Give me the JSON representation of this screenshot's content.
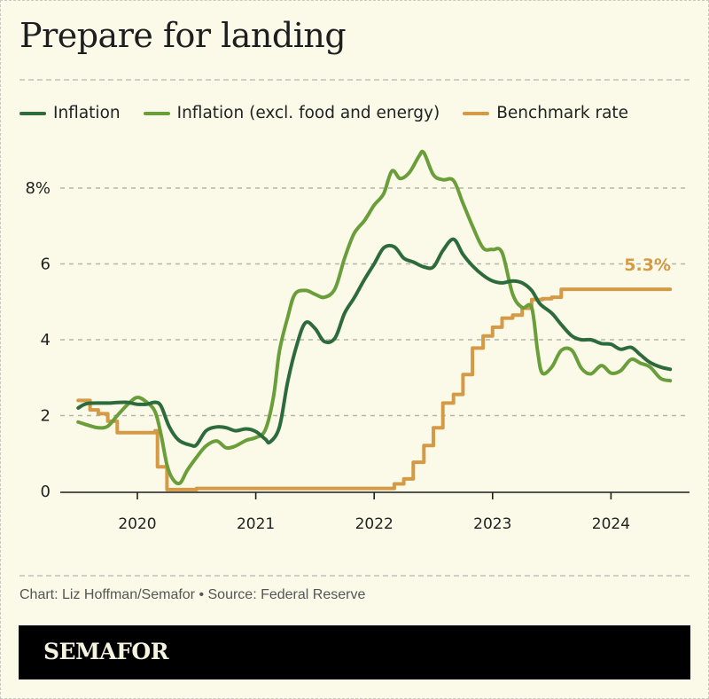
{
  "title": "Prepare for landing",
  "legend": [
    {
      "label": "Inflation",
      "color": "#2e6b3c"
    },
    {
      "label": "Inflation (excl. food and energy)",
      "color": "#6a9e3a"
    },
    {
      "label": "Benchmark rate",
      "color": "#d49a45"
    }
  ],
  "footer": {
    "source": "Chart: Liz Hoffman/Semafor • Source: Federal Reserve",
    "brand": "SEMAFOR"
  },
  "chart_data": {
    "type": "line",
    "title": "Prepare for landing",
    "xlabel": "",
    "ylabel": "",
    "xlim": [
      2019.5,
      2024.55
    ],
    "ylim": [
      0,
      8.4
    ],
    "grid": true,
    "legend_position": "top",
    "yticks": [
      {
        "value": 0,
        "label": "0"
      },
      {
        "value": 2,
        "label": "2"
      },
      {
        "value": 4,
        "label": "4"
      },
      {
        "value": 6,
        "label": "6"
      },
      {
        "value": 8,
        "label": "8%"
      }
    ],
    "xticks": [
      {
        "value": 2020,
        "label": "2020"
      },
      {
        "value": 2021,
        "label": "2021"
      },
      {
        "value": 2022,
        "label": "2022"
      },
      {
        "value": 2023,
        "label": "2023"
      },
      {
        "value": 2024,
        "label": "2024"
      }
    ],
    "annotations": [
      {
        "text": "5.3%",
        "x": 2024.5,
        "y": 5.3,
        "series": "Benchmark rate"
      }
    ],
    "series": [
      {
        "name": "Inflation",
        "color": "#2e6b3c",
        "step": false,
        "points": [
          [
            2019.5,
            2.2
          ],
          [
            2019.58,
            2.32
          ],
          [
            2019.75,
            2.33
          ],
          [
            2019.9,
            2.35
          ],
          [
            2020.0,
            2.3
          ],
          [
            2020.08,
            2.3
          ],
          [
            2020.15,
            2.35
          ],
          [
            2020.2,
            2.25
          ],
          [
            2020.27,
            1.7
          ],
          [
            2020.35,
            1.35
          ],
          [
            2020.45,
            1.22
          ],
          [
            2020.5,
            1.23
          ],
          [
            2020.58,
            1.6
          ],
          [
            2020.67,
            1.7
          ],
          [
            2020.75,
            1.68
          ],
          [
            2020.83,
            1.6
          ],
          [
            2020.92,
            1.65
          ],
          [
            2021.0,
            1.58
          ],
          [
            2021.08,
            1.38
          ],
          [
            2021.12,
            1.3
          ],
          [
            2021.2,
            1.7
          ],
          [
            2021.27,
            2.9
          ],
          [
            2021.35,
            3.9
          ],
          [
            2021.42,
            4.45
          ],
          [
            2021.5,
            4.3
          ],
          [
            2021.58,
            3.95
          ],
          [
            2021.67,
            4.05
          ],
          [
            2021.75,
            4.7
          ],
          [
            2021.83,
            5.1
          ],
          [
            2021.92,
            5.6
          ],
          [
            2022.0,
            6.0
          ],
          [
            2022.08,
            6.42
          ],
          [
            2022.17,
            6.45
          ],
          [
            2022.25,
            6.15
          ],
          [
            2022.33,
            6.05
          ],
          [
            2022.42,
            5.92
          ],
          [
            2022.5,
            5.92
          ],
          [
            2022.58,
            6.35
          ],
          [
            2022.67,
            6.65
          ],
          [
            2022.75,
            6.25
          ],
          [
            2022.83,
            5.95
          ],
          [
            2022.92,
            5.7
          ],
          [
            2023.0,
            5.55
          ],
          [
            2023.08,
            5.5
          ],
          [
            2023.17,
            5.55
          ],
          [
            2023.25,
            5.5
          ],
          [
            2023.33,
            5.3
          ],
          [
            2023.4,
            4.95
          ],
          [
            2023.5,
            4.7
          ],
          [
            2023.58,
            4.4
          ],
          [
            2023.67,
            4.1
          ],
          [
            2023.75,
            4.0
          ],
          [
            2023.83,
            4.0
          ],
          [
            2023.92,
            3.9
          ],
          [
            2024.0,
            3.88
          ],
          [
            2024.08,
            3.75
          ],
          [
            2024.17,
            3.8
          ],
          [
            2024.25,
            3.6
          ],
          [
            2024.33,
            3.4
          ],
          [
            2024.42,
            3.28
          ],
          [
            2024.5,
            3.22
          ]
        ]
      },
      {
        "name": "Inflation (excl. food and energy)",
        "color": "#6a9e3a",
        "step": false,
        "points": [
          [
            2019.5,
            1.83
          ],
          [
            2019.58,
            1.75
          ],
          [
            2019.67,
            1.68
          ],
          [
            2019.75,
            1.72
          ],
          [
            2019.83,
            2.0
          ],
          [
            2019.92,
            2.3
          ],
          [
            2020.0,
            2.48
          ],
          [
            2020.08,
            2.35
          ],
          [
            2020.15,
            2.1
          ],
          [
            2020.2,
            1.5
          ],
          [
            2020.25,
            0.7
          ],
          [
            2020.3,
            0.32
          ],
          [
            2020.36,
            0.22
          ],
          [
            2020.42,
            0.55
          ],
          [
            2020.5,
            0.9
          ],
          [
            2020.58,
            1.2
          ],
          [
            2020.67,
            1.33
          ],
          [
            2020.75,
            1.15
          ],
          [
            2020.83,
            1.2
          ],
          [
            2020.92,
            1.35
          ],
          [
            2021.0,
            1.42
          ],
          [
            2021.08,
            1.62
          ],
          [
            2021.15,
            2.5
          ],
          [
            2021.2,
            3.7
          ],
          [
            2021.27,
            4.6
          ],
          [
            2021.33,
            5.2
          ],
          [
            2021.42,
            5.3
          ],
          [
            2021.5,
            5.2
          ],
          [
            2021.58,
            5.12
          ],
          [
            2021.67,
            5.35
          ],
          [
            2021.75,
            6.15
          ],
          [
            2021.83,
            6.8
          ],
          [
            2021.92,
            7.15
          ],
          [
            2022.0,
            7.55
          ],
          [
            2022.08,
            7.85
          ],
          [
            2022.15,
            8.45
          ],
          [
            2022.22,
            8.25
          ],
          [
            2022.3,
            8.42
          ],
          [
            2022.38,
            8.85
          ],
          [
            2022.42,
            8.93
          ],
          [
            2022.5,
            8.35
          ],
          [
            2022.58,
            8.22
          ],
          [
            2022.67,
            8.2
          ],
          [
            2022.75,
            7.6
          ],
          [
            2022.83,
            7.0
          ],
          [
            2022.92,
            6.42
          ],
          [
            2023.0,
            6.38
          ],
          [
            2023.08,
            6.3
          ],
          [
            2023.17,
            5.2
          ],
          [
            2023.25,
            4.85
          ],
          [
            2023.33,
            4.85
          ],
          [
            2023.38,
            3.7
          ],
          [
            2023.42,
            3.12
          ],
          [
            2023.5,
            3.28
          ],
          [
            2023.58,
            3.72
          ],
          [
            2023.67,
            3.72
          ],
          [
            2023.75,
            3.25
          ],
          [
            2023.83,
            3.1
          ],
          [
            2023.92,
            3.32
          ],
          [
            2024.0,
            3.12
          ],
          [
            2024.08,
            3.18
          ],
          [
            2024.17,
            3.48
          ],
          [
            2024.25,
            3.38
          ],
          [
            2024.33,
            3.28
          ],
          [
            2024.42,
            2.98
          ],
          [
            2024.5,
            2.92
          ]
        ]
      },
      {
        "name": "Benchmark rate",
        "color": "#d49a45",
        "step": true,
        "points": [
          [
            2019.5,
            2.4
          ],
          [
            2019.6,
            2.15
          ],
          [
            2019.67,
            2.05
          ],
          [
            2019.75,
            1.85
          ],
          [
            2019.83,
            1.55
          ],
          [
            2020.0,
            1.55
          ],
          [
            2020.15,
            1.6
          ],
          [
            2020.17,
            0.65
          ],
          [
            2020.25,
            0.05
          ],
          [
            2020.3,
            0.05
          ],
          [
            2020.5,
            0.08
          ],
          [
            2021.0,
            0.08
          ],
          [
            2021.5,
            0.08
          ],
          [
            2021.75,
            0.08
          ],
          [
            2022.0,
            0.08
          ],
          [
            2022.17,
            0.2
          ],
          [
            2022.25,
            0.33
          ],
          [
            2022.33,
            0.77
          ],
          [
            2022.42,
            1.21
          ],
          [
            2022.5,
            1.68
          ],
          [
            2022.58,
            2.33
          ],
          [
            2022.67,
            2.56
          ],
          [
            2022.75,
            3.08
          ],
          [
            2022.83,
            3.78
          ],
          [
            2022.92,
            4.1
          ],
          [
            2023.0,
            4.33
          ],
          [
            2023.08,
            4.57
          ],
          [
            2023.17,
            4.65
          ],
          [
            2023.25,
            4.83
          ],
          [
            2023.33,
            5.06
          ],
          [
            2023.42,
            5.08
          ],
          [
            2023.5,
            5.12
          ],
          [
            2023.58,
            5.33
          ],
          [
            2024.0,
            5.33
          ],
          [
            2024.5,
            5.33
          ]
        ]
      }
    ]
  }
}
